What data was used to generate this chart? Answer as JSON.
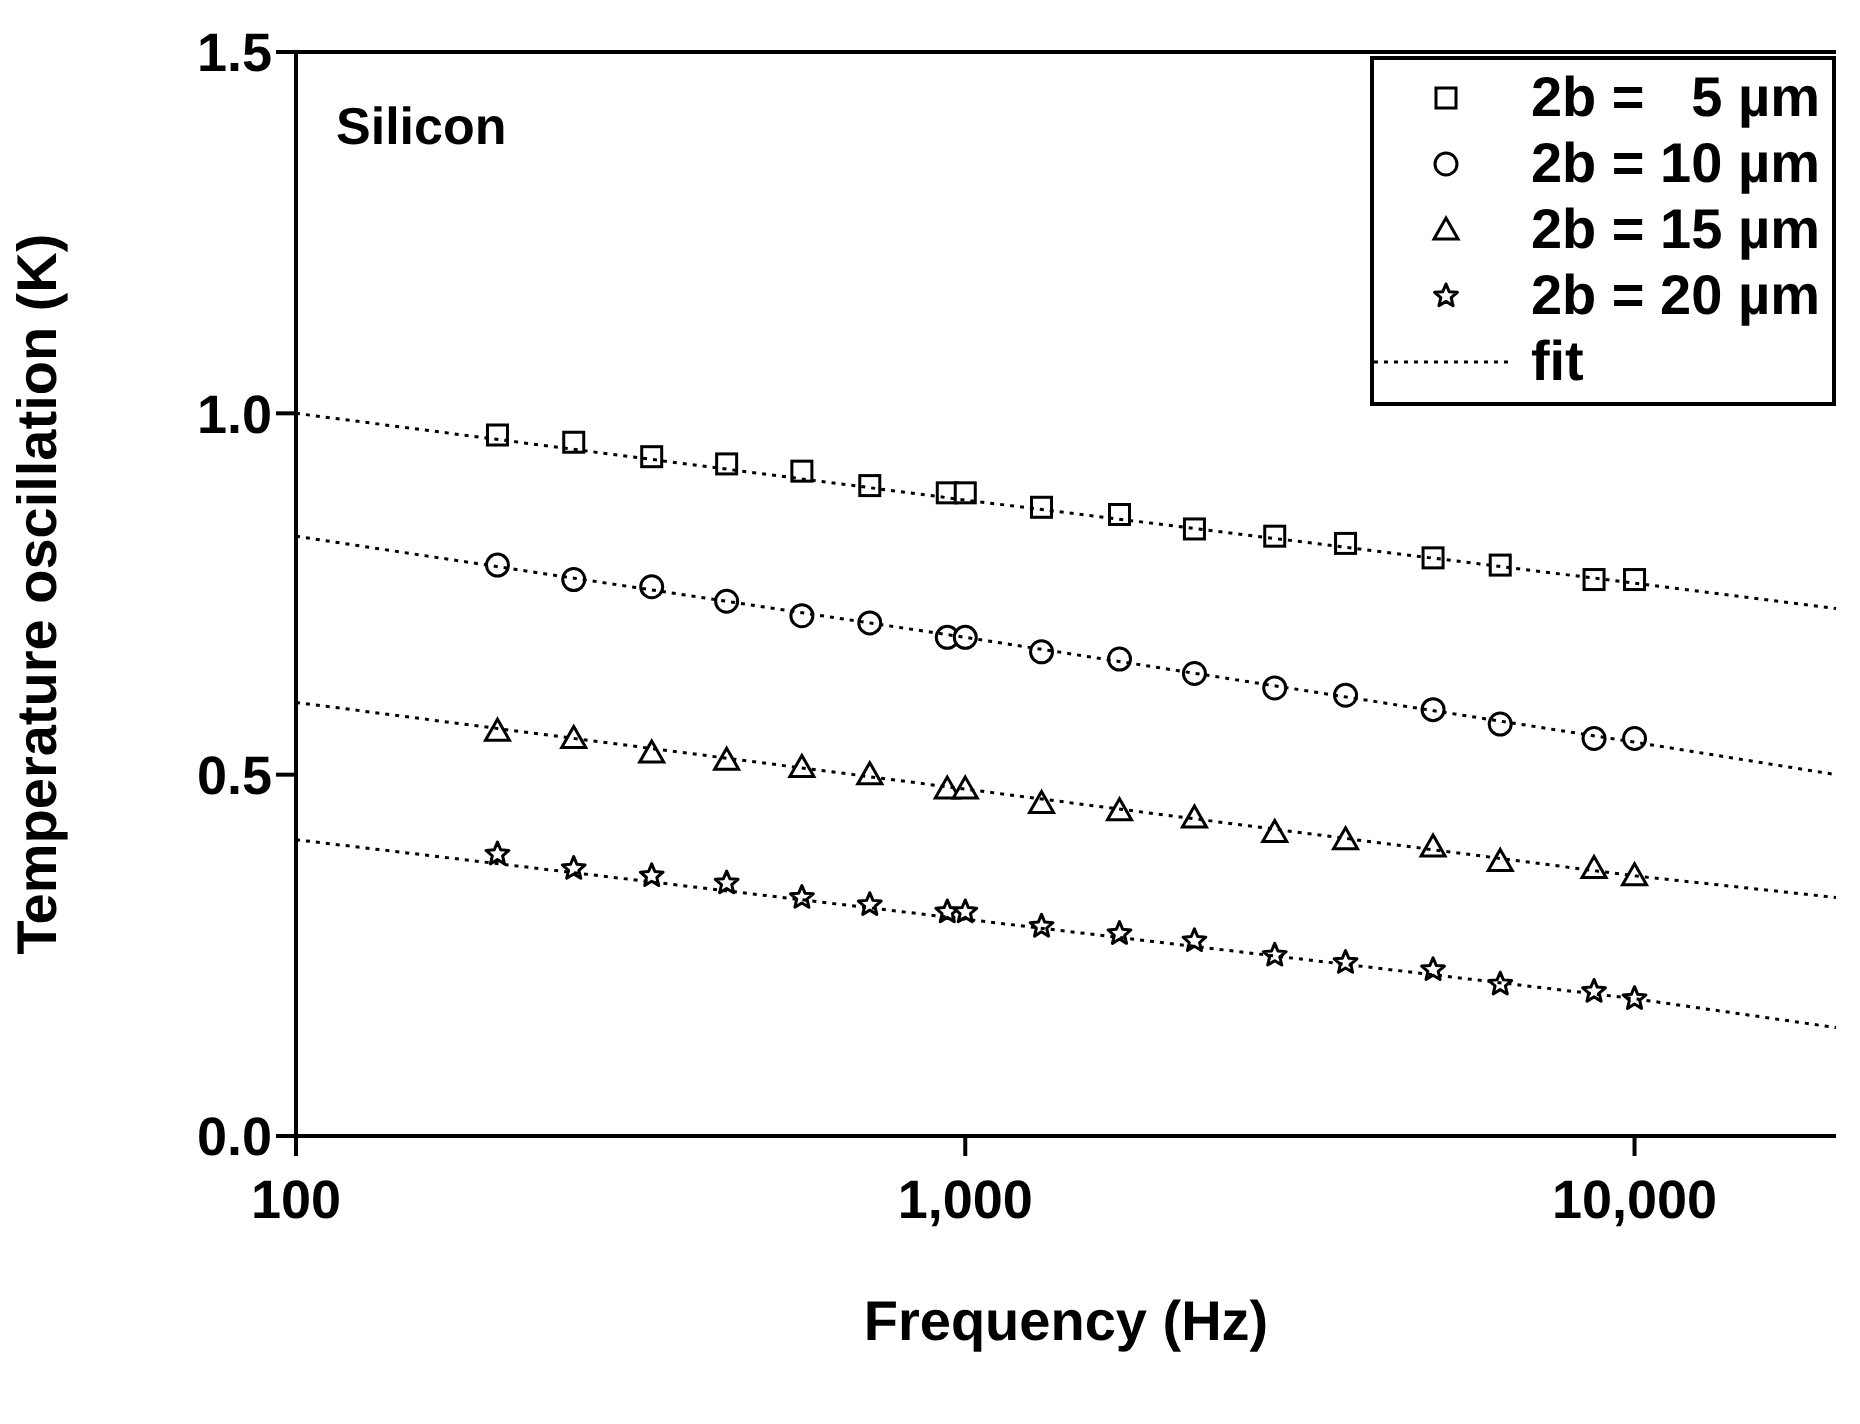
{
  "chart_data": {
    "type": "scatter",
    "xlabel": "Frequency (Hz)",
    "ylabel": "Temperature oscillation (K)",
    "annotations": [
      "Silicon"
    ],
    "log": "x",
    "xlim": [
      100,
      20000
    ],
    "xticks": [
      100,
      {
        "value": 1000,
        "label": "1,000"
      },
      {
        "value": 10000,
        "label": "10,000"
      }
    ],
    "ylim": [
      0,
      1.5
    ],
    "yticks": [
      {
        "value": 0,
        "label": "0.0"
      },
      {
        "value": 0.5,
        "label": "0.5"
      },
      {
        "value": 1,
        "label": "1.0"
      },
      {
        "value": 1.5,
        "label": "1.5"
      }
    ],
    "grid": false,
    "legend": "top right",
    "x": [
      200,
      260,
      340,
      440,
      570,
      720,
      940,
      1000,
      1300,
      1700,
      2200,
      2900,
      3700,
      5000,
      6300,
      8700,
      10000
    ],
    "series": [
      {
        "name": "2b =   5 µm",
        "color": "#000000",
        "marker": "square",
        "values": [
          0.97,
          0.96,
          0.94,
          0.93,
          0.92,
          0.9,
          0.89,
          0.89,
          0.87,
          0.86,
          0.84,
          0.83,
          0.82,
          0.8,
          0.79,
          0.77,
          0.77
        ]
      },
      {
        "name": "2b = 10 µm",
        "color": "#000000",
        "marker": "circle",
        "values": [
          0.79,
          0.77,
          0.76,
          0.74,
          0.72,
          0.71,
          0.69,
          0.69,
          0.67,
          0.66,
          0.64,
          0.62,
          0.61,
          0.59,
          0.57,
          0.55,
          0.55
        ]
      },
      {
        "name": "2b = 15 µm",
        "color": "#000000",
        "marker": "triangle",
        "values": [
          0.56,
          0.55,
          0.53,
          0.52,
          0.51,
          0.5,
          0.48,
          0.48,
          0.46,
          0.45,
          0.44,
          0.42,
          0.41,
          0.4,
          0.38,
          0.37,
          0.36
        ]
      },
      {
        "name": "2b = 20 µm",
        "color": "#000000",
        "marker": "star",
        "values": [
          0.39,
          0.37,
          0.36,
          0.35,
          0.33,
          0.32,
          0.31,
          0.31,
          0.29,
          0.28,
          0.27,
          0.25,
          0.24,
          0.23,
          0.21,
          0.2,
          0.19
        ]
      },
      {
        "name": "fit",
        "type": "line",
        "color": "#000000",
        "marker": "none",
        "line_style": "dotted",
        "x": [
          100,
          1000,
          10000,
          20000
        ],
        "values": [
          1.0,
          0.88,
          0.765,
          0.73
        ]
      },
      {
        "type": "line",
        "color": "#000000",
        "marker": "none",
        "line_style": "dotted",
        "x": [
          100,
          1000,
          10000,
          20000
        ],
        "values": [
          0.83,
          0.69,
          0.545,
          0.5
        ]
      },
      {
        "type": "line",
        "color": "#000000",
        "marker": "none",
        "line_style": "dotted",
        "x": [
          100,
          1000,
          10000,
          20000
        ],
        "values": [
          0.6,
          0.48,
          0.36,
          0.33
        ]
      },
      {
        "type": "line",
        "color": "#000000",
        "marker": "none",
        "line_style": "dotted",
        "x": [
          100,
          1000,
          10000,
          20000
        ],
        "values": [
          0.41,
          0.3,
          0.19,
          0.15
        ]
      }
    ]
  }
}
